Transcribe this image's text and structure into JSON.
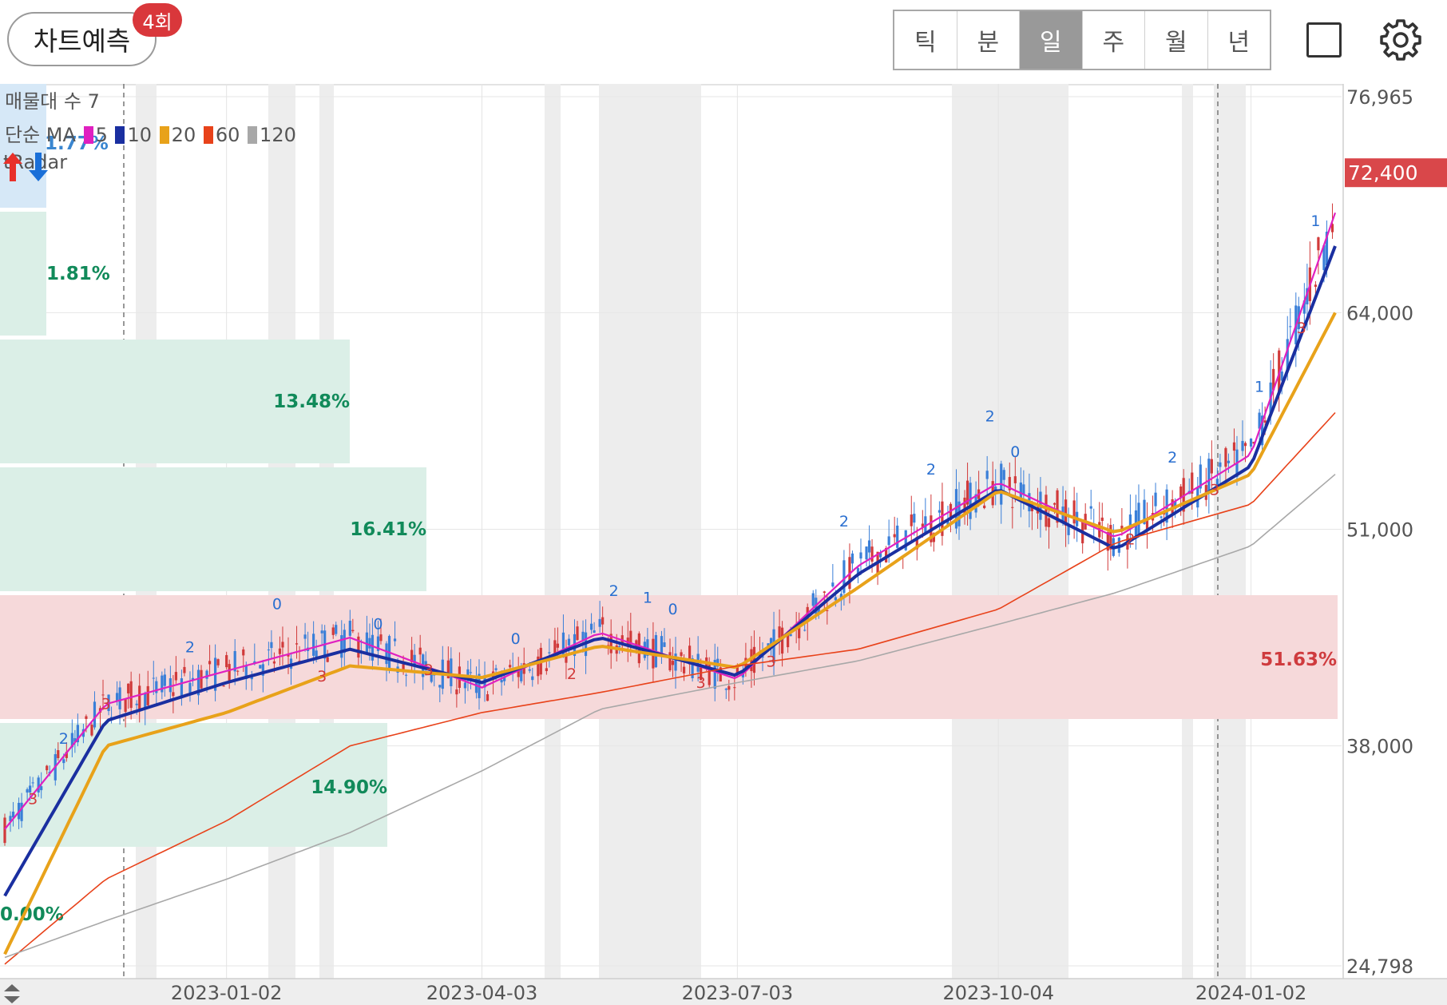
{
  "header": {
    "predict_label": "차트예측",
    "predict_badge": "4회",
    "periods": [
      "틱",
      "분",
      "일",
      "주",
      "월",
      "년"
    ],
    "active_period": "일"
  },
  "legend": {
    "volume_profile_label": "매물대 수 7",
    "ma_label": "단순 MA",
    "ma_items": [
      {
        "period": "5",
        "color": "#e020c0"
      },
      {
        "period": "10",
        "color": "#1a2fa0"
      },
      {
        "period": "20",
        "color": "#e8a21a"
      },
      {
        "period": "60",
        "color": "#e8421a"
      },
      {
        "period": "120",
        "color": "#a8a8a8"
      }
    ],
    "radar_label": "tRadar",
    "radar_up_color": "#e8302a",
    "radar_down_color": "#1a6fd8"
  },
  "y_axis": {
    "ticks": [
      "76,965",
      "64,000",
      "51,000",
      "38,000",
      "24,798"
    ],
    "current_price": "72,400",
    "current_price_color": "#d9474a"
  },
  "x_axis": {
    "ticks": [
      "2023-01-02",
      "2023-04-03",
      "2023-07-03",
      "2023-10-04",
      "2024-01-02"
    ]
  },
  "volume_profile": [
    {
      "percent": "1.77%",
      "color": "#d6e8f7"
    },
    {
      "percent": "1.81%",
      "color": "#dbefe7"
    },
    {
      "percent": "13.48%",
      "color": "#dbefe7"
    },
    {
      "percent": "16.41%",
      "color": "#dbefe7"
    },
    {
      "percent": "51.63%",
      "color": "#f6d9da"
    },
    {
      "percent": "14.90%",
      "color": "#dbefe7"
    },
    {
      "percent": "0.00%",
      "color": "#dbefe7"
    }
  ],
  "chart_data": {
    "type": "candlestick",
    "period": "일",
    "ylim": [
      24798,
      76965
    ],
    "last_price": 72400,
    "series": [
      {
        "name": "5",
        "x": [
          "2022-10-15",
          "2022-11-20",
          "2023-01-02",
          "2023-02-15",
          "2023-04-03",
          "2023-05-15",
          "2023-07-03",
          "2023-08-15",
          "2023-10-04",
          "2023-11-15",
          "2024-01-02",
          "2024-02-01"
        ],
        "values": [
          33000,
          40500,
          42500,
          44500,
          41500,
          44800,
          42000,
          48800,
          53800,
          50500,
          55500,
          70000
        ]
      },
      {
        "name": "10",
        "x": [
          "2022-10-15",
          "2022-11-20",
          "2023-01-02",
          "2023-02-15",
          "2023-04-03",
          "2023-05-15",
          "2023-07-03",
          "2023-08-15",
          "2023-10-04",
          "2023-11-15",
          "2024-01-02",
          "2024-02-01"
        ],
        "values": [
          29000,
          39500,
          41800,
          43800,
          41800,
          44500,
          42200,
          48300,
          53400,
          49800,
          54800,
          68000
        ]
      },
      {
        "name": "20",
        "x": [
          "2022-10-15",
          "2022-11-20",
          "2023-01-02",
          "2023-02-15",
          "2023-04-03",
          "2023-05-15",
          "2023-07-03",
          "2023-08-15",
          "2023-10-04",
          "2023-11-15",
          "2024-01-02",
          "2024-02-01"
        ],
        "values": [
          25500,
          38000,
          40000,
          42800,
          42100,
          44000,
          42700,
          47500,
          53300,
          50800,
          54300,
          64000
        ]
      },
      {
        "name": "60",
        "x": [
          "2022-10-15",
          "2022-11-20",
          "2023-01-02",
          "2023-02-15",
          "2023-04-03",
          "2023-05-15",
          "2023-07-03",
          "2023-08-15",
          "2023-10-04",
          "2023-11-15",
          "2024-01-02",
          "2024-02-01"
        ],
        "values": [
          24900,
          30000,
          33500,
          38000,
          40000,
          41200,
          42800,
          43800,
          46200,
          50200,
          52500,
          58000
        ]
      },
      {
        "name": "120",
        "x": [
          "2022-10-15",
          "2022-11-20",
          "2023-01-02",
          "2023-02-15",
          "2023-04-03",
          "2023-05-15",
          "2023-07-03",
          "2023-08-15",
          "2023-10-04",
          "2023-11-15",
          "2024-01-02",
          "2024-02-01"
        ],
        "values": [
          25300,
          27500,
          30000,
          32800,
          36500,
          40200,
          41800,
          43100,
          45300,
          47200,
          50000,
          54300
        ]
      }
    ]
  }
}
